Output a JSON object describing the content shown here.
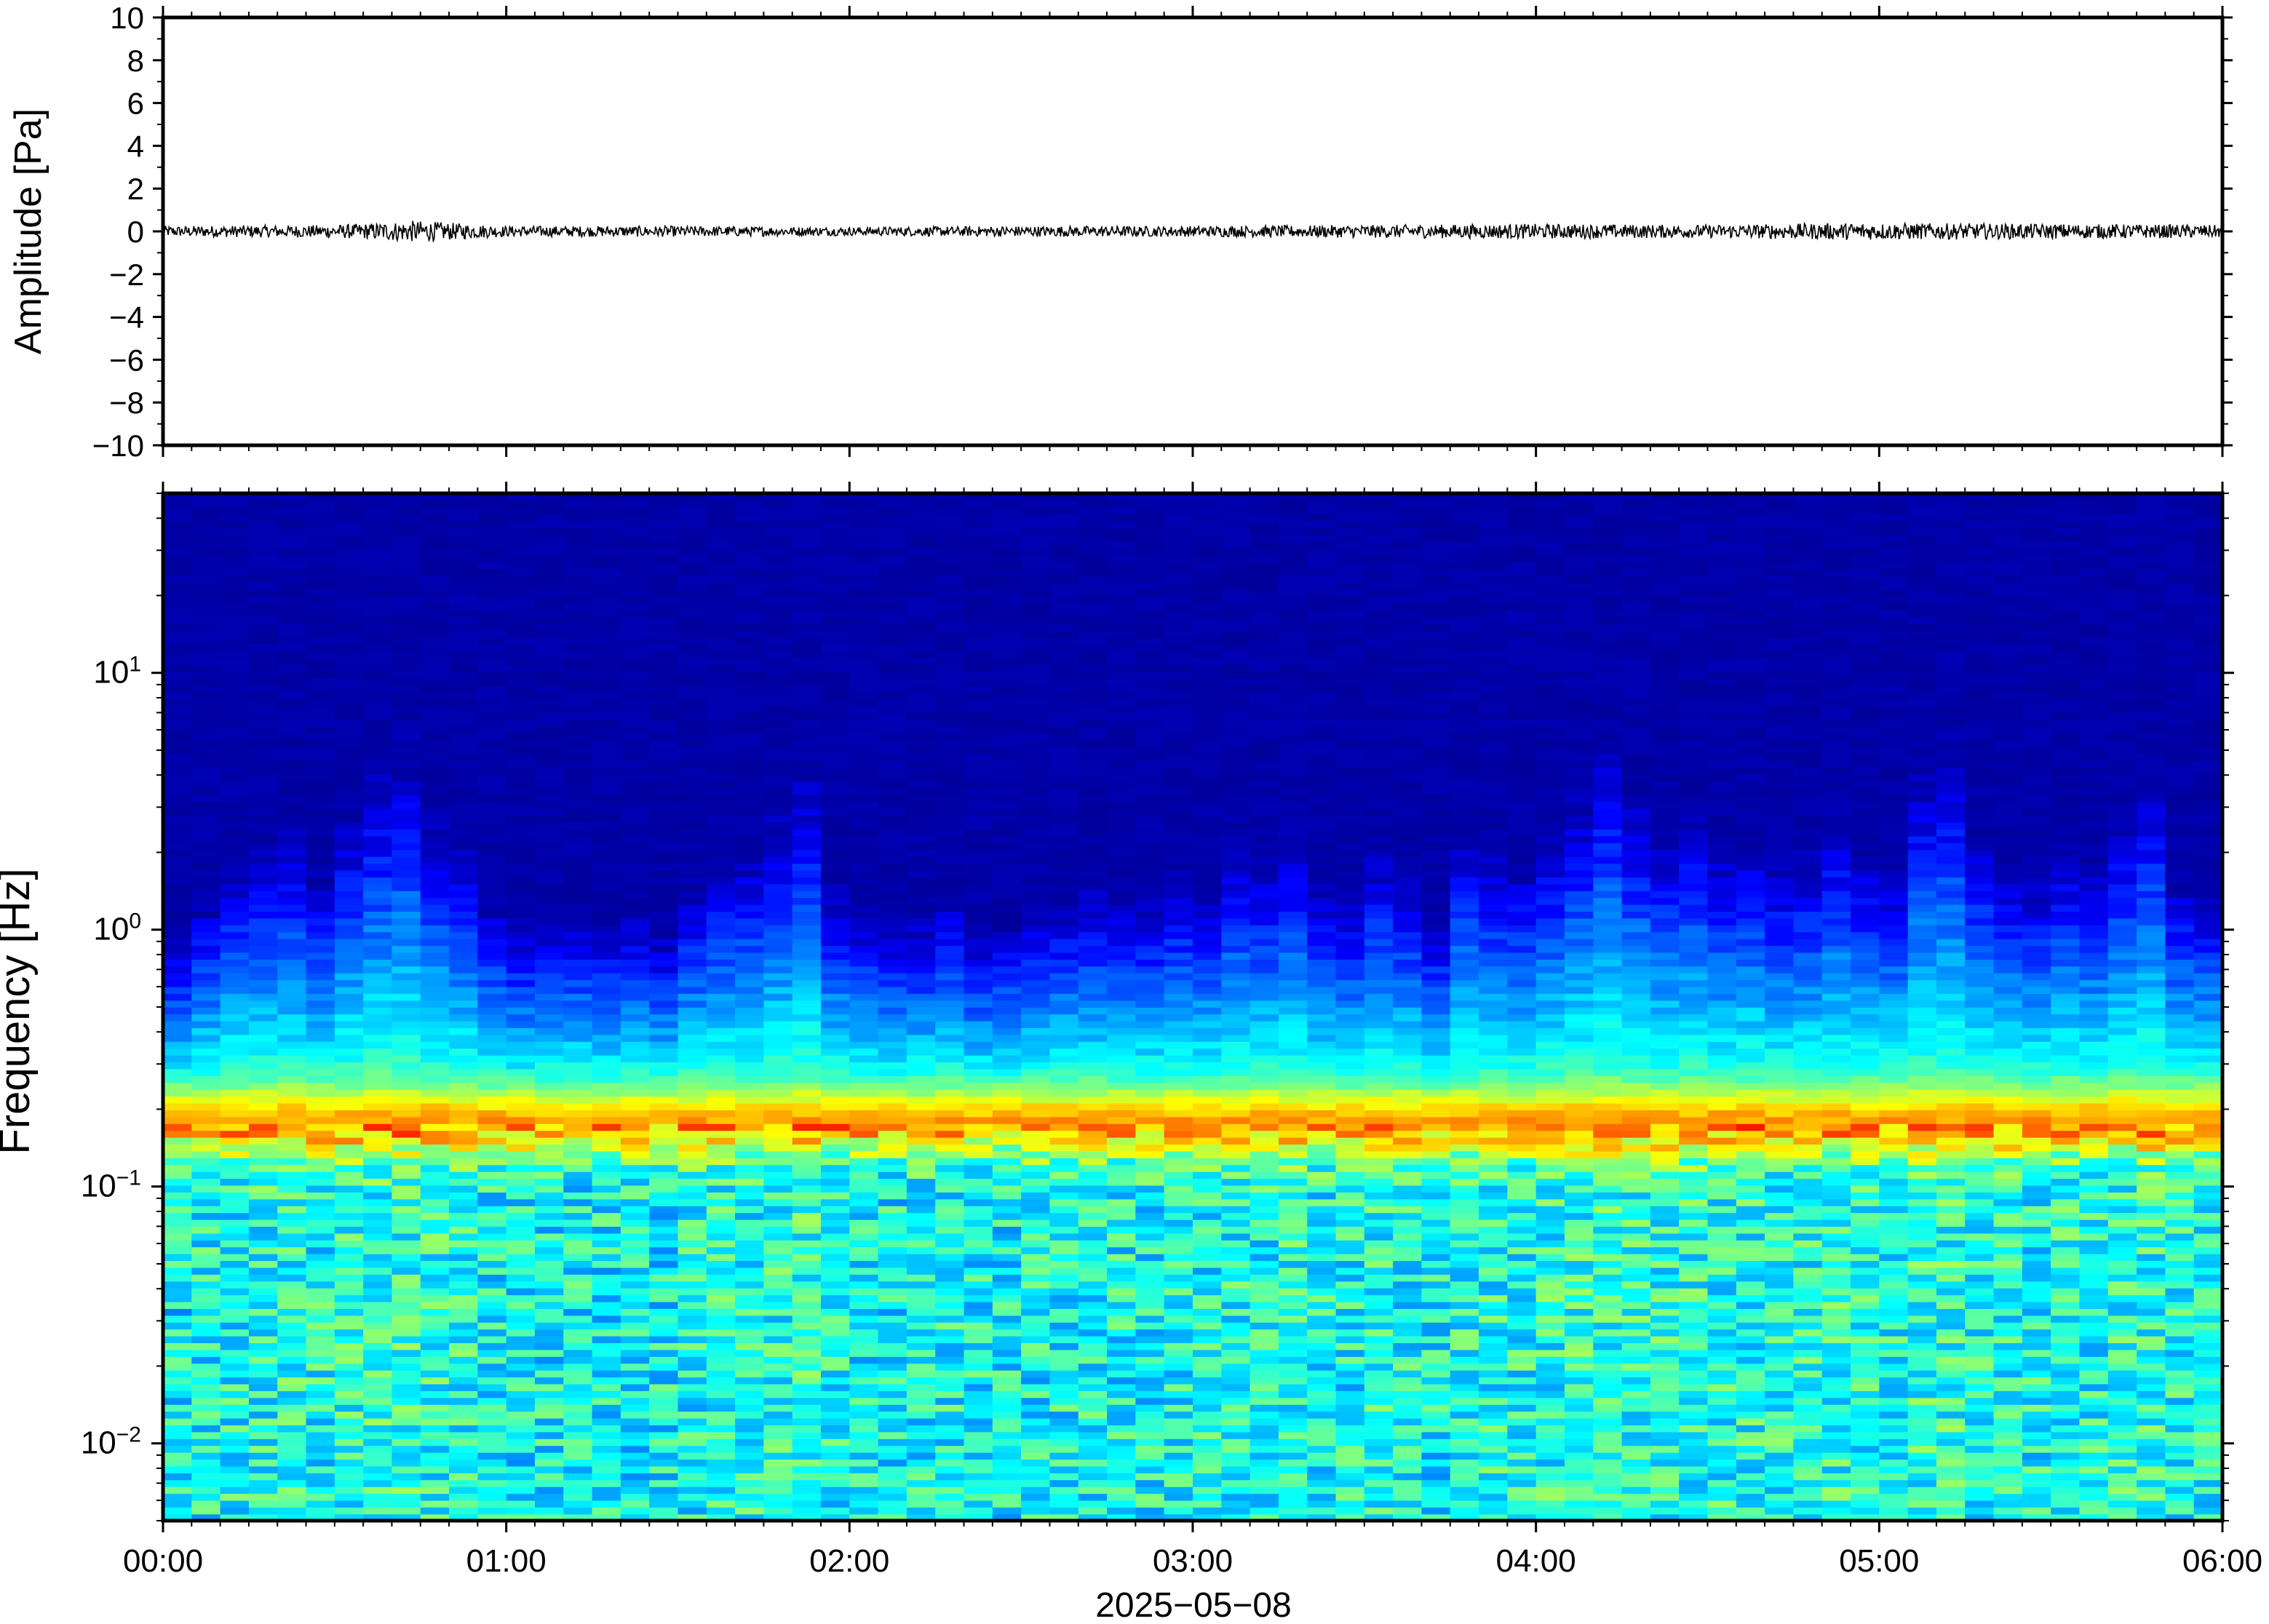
{
  "chart_data": [
    {
      "type": "line",
      "panel": "waveform",
      "ylabel": "Amplitude [Pa]",
      "ylim": [
        -10,
        10
      ],
      "yticks": [
        -10,
        -8,
        -6,
        -4,
        -2,
        0,
        2,
        4,
        6,
        8,
        10
      ],
      "ytick_labels": [
        "−10",
        "−8",
        "−6",
        "−4",
        "−2",
        "0",
        "2",
        "4",
        "6",
        "8",
        "10"
      ],
      "x_range": [
        "00:00",
        "06:00"
      ],
      "series": [
        {
          "color": "#000000",
          "x": [
            "00:00",
            "00:30",
            "00:44",
            "01:00",
            "01:30",
            "02:00",
            "02:30",
            "03:00",
            "03:30",
            "04:00",
            "04:30",
            "04:55",
            "05:30",
            "06:00"
          ],
          "y": [
            0.25,
            0.3,
            0.5,
            0.25,
            0.25,
            0.2,
            0.25,
            0.25,
            0.3,
            0.35,
            0.3,
            0.4,
            0.35,
            0.3
          ]
        }
      ]
    },
    {
      "type": "heatmap",
      "panel": "spectrogram",
      "ylabel": "Frequency [Hz]",
      "xlabel": "2025−05−08",
      "x_ticks": [
        "00:00",
        "01:00",
        "02:00",
        "03:00",
        "04:00",
        "05:00",
        "06:00"
      ],
      "y_scale": "log",
      "ylim_hz": [
        0.005,
        50
      ],
      "y_ticks": [
        {
          "base": "10",
          "exp": "−2"
        },
        {
          "base": "10",
          "exp": "−1"
        },
        {
          "base": "10",
          "exp": "0"
        },
        {
          "base": "10",
          "exp": "1"
        }
      ],
      "colormap": [
        "#00007f",
        "#0000ff",
        "#007fff",
        "#00ffff",
        "#7fff7f",
        "#ffff00",
        "#ff7f00",
        "#ff0000"
      ],
      "band_peak_hz": 0.18,
      "column_activity": [
        0.05,
        0.3,
        0.45,
        0.5,
        0.55,
        0.4,
        0.6,
        0.7,
        0.75,
        0.6,
        0.5,
        0.3,
        0.15,
        0.2,
        0.2,
        0.15,
        0.2,
        0.1,
        0.35,
        0.45,
        0.5,
        0.6,
        0.7,
        0.35,
        0.25,
        0.15,
        0.2,
        0.3,
        0.1,
        0.15,
        0.25,
        0.3,
        0.35,
        0.3,
        0.3,
        0.4,
        0.35,
        0.5,
        0.45,
        0.55,
        0.35,
        0.3,
        0.5,
        0.4,
        0.2,
        0.55,
        0.5,
        0.45,
        0.55,
        0.65,
        0.75,
        0.65,
        0.55,
        0.6,
        0.5,
        0.55,
        0.45,
        0.5,
        0.6,
        0.5,
        0.45,
        0.7,
        0.75,
        0.55,
        0.45,
        0.4,
        0.5,
        0.45,
        0.6,
        0.7,
        0.4,
        0.35
      ]
    }
  ]
}
